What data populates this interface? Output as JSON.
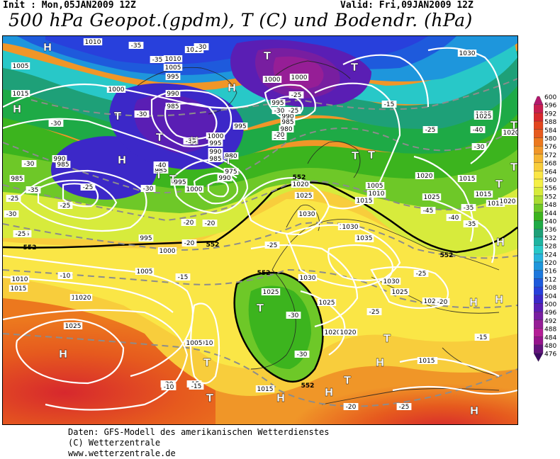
{
  "header": {
    "init_text": "Init : Mon,05JAN2009 12Z",
    "valid_text": "Valid: Fri,09JAN2009 12Z",
    "title": "500 hPa Geopot.(gpdm), T (C) und Bodendr. (hPa)"
  },
  "colorbar": {
    "labels": [
      "600",
      "596",
      "592",
      "588",
      "584",
      "580",
      "576",
      "572",
      "568",
      "564",
      "560",
      "556",
      "552",
      "548",
      "544",
      "540",
      "536",
      "532",
      "528",
      "524",
      "520",
      "516",
      "512",
      "508",
      "504",
      "500",
      "496",
      "492",
      "488",
      "484",
      "480",
      "476"
    ],
    "colors": [
      "#b4186e",
      "#c81e50",
      "#d7282d",
      "#e2461e",
      "#e65a1e",
      "#ec781e",
      "#f09628",
      "#f5b432",
      "#f8cd3c",
      "#fae646",
      "#f5f046",
      "#d7eb3c",
      "#aadc32",
      "#6ec828",
      "#3cb41e",
      "#1eaa46",
      "#1ea078",
      "#1eb4a0",
      "#28c8c8",
      "#28b4dc",
      "#1e96dc",
      "#1e78dc",
      "#1e5adc",
      "#2840dc",
      "#3c28c8",
      "#5a1eb4",
      "#781ea0",
      "#961e96",
      "#b41e96",
      "#96148c",
      "#64147d",
      "#3c0a64"
    ]
  },
  "map": {
    "isobar_labels": [
      {
        "t": "1010"
      },
      {
        "t": "1015"
      },
      {
        "t": "1010"
      },
      {
        "t": "1005"
      },
      {
        "t": "995"
      },
      {
        "t": "990"
      },
      {
        "t": "985"
      },
      {
        "t": "1000"
      },
      {
        "t": "1005"
      },
      {
        "t": "1015"
      },
      {
        "t": "1000"
      },
      {
        "t": "995"
      },
      {
        "t": "990"
      },
      {
        "t": "985"
      },
      {
        "t": "980"
      },
      {
        "t": "975"
      },
      {
        "t": "1000"
      },
      {
        "t": "995"
      },
      {
        "t": "990"
      },
      {
        "t": "985"
      },
      {
        "t": "980"
      },
      {
        "t": "975"
      },
      {
        "t": "985"
      },
      {
        "t": "990"
      },
      {
        "t": "995"
      },
      {
        "t": "1000"
      },
      {
        "t": "1005"
      },
      {
        "t": "1010"
      },
      {
        "t": "1015"
      },
      {
        "t": "1020"
      },
      {
        "t": "1025"
      },
      {
        "t": "1030"
      },
      {
        "t": "1035"
      },
      {
        "t": "1030"
      },
      {
        "t": "1025"
      },
      {
        "t": "1020"
      },
      {
        "t": "1015"
      },
      {
        "t": "1010"
      },
      {
        "t": "1005"
      },
      {
        "t": "1000"
      },
      {
        "t": "995"
      },
      {
        "t": "990"
      },
      {
        "t": "985"
      },
      {
        "t": "1030"
      },
      {
        "t": "1025"
      },
      {
        "t": "1020"
      },
      {
        "t": "1015"
      },
      {
        "t": "1020"
      },
      {
        "t": "1025"
      },
      {
        "t": "1030"
      },
      {
        "t": "1035"
      },
      {
        "t": "1030"
      },
      {
        "t": "1025"
      },
      {
        "t": "1020"
      },
      {
        "t": "1015"
      },
      {
        "t": "1010"
      },
      {
        "t": "1020"
      },
      {
        "t": "1025"
      },
      {
        "t": "1015"
      },
      {
        "t": "1020"
      },
      {
        "t": "1025"
      },
      {
        "t": "1015"
      },
      {
        "t": "1030"
      },
      {
        "t": "1025"
      },
      {
        "t": "1020"
      },
      {
        "t": "1015"
      },
      {
        "t": "1010"
      },
      {
        "t": "1005"
      },
      {
        "t": "1000"
      },
      {
        "t": "995"
      },
      {
        "t": "990"
      },
      {
        "t": "985"
      },
      {
        "t": "1020"
      },
      {
        "t": "1015"
      }
    ],
    "temp_labels": [
      {
        "t": "-35"
      },
      {
        "t": "-30"
      },
      {
        "t": "-35"
      },
      {
        "t": "-30"
      },
      {
        "t": "-25"
      },
      {
        "t": "-30"
      },
      {
        "t": "-25"
      },
      {
        "t": "-30"
      },
      {
        "t": "-40"
      },
      {
        "t": "-35"
      },
      {
        "t": "-30"
      },
      {
        "t": "-25"
      },
      {
        "t": "-25"
      },
      {
        "t": "-20"
      },
      {
        "t": "-15"
      },
      {
        "t": "-25"
      },
      {
        "t": "-45"
      },
      {
        "t": "-40"
      },
      {
        "t": "-35"
      },
      {
        "t": "-40"
      },
      {
        "t": "-35"
      },
      {
        "t": "-30"
      },
      {
        "t": "-25"
      },
      {
        "t": "-30"
      },
      {
        "t": "-25"
      },
      {
        "t": "-35"
      },
      {
        "t": "-30"
      },
      {
        "t": "-25"
      },
      {
        "t": "-20"
      },
      {
        "t": "-25"
      },
      {
        "t": "-20"
      },
      {
        "t": "-25"
      },
      {
        "t": "-30"
      },
      {
        "t": "-30"
      },
      {
        "t": "-25"
      },
      {
        "t": "-20"
      },
      {
        "t": "-20"
      },
      {
        "t": "-15"
      },
      {
        "t": "-10"
      },
      {
        "t": "-15"
      },
      {
        "t": "-20"
      },
      {
        "t": "-15"
      },
      {
        "t": "-10"
      },
      {
        "t": "-15"
      },
      {
        "t": "-20"
      },
      {
        "t": "-25"
      }
    ],
    "contour_labels": [
      {
        "t": "552"
      },
      {
        "t": "552"
      },
      {
        "t": "552"
      },
      {
        "t": "552"
      },
      {
        "t": "552"
      },
      {
        "t": "552"
      }
    ],
    "pressure_centers": [
      {
        "t": "H"
      },
      {
        "t": "H"
      },
      {
        "t": "T"
      },
      {
        "t": "T"
      },
      {
        "t": "H"
      },
      {
        "t": "H"
      },
      {
        "t": "T"
      },
      {
        "t": "H"
      },
      {
        "t": "T"
      },
      {
        "t": "T"
      },
      {
        "t": "T"
      },
      {
        "t": "T"
      },
      {
        "t": "T"
      },
      {
        "t": "T"
      },
      {
        "t": "T"
      },
      {
        "t": "H"
      },
      {
        "t": "H"
      },
      {
        "t": "T"
      },
      {
        "t": "H"
      },
      {
        "t": "T"
      },
      {
        "t": "T"
      },
      {
        "t": "T"
      },
      {
        "t": "H"
      },
      {
        "t": "T"
      },
      {
        "t": "H"
      },
      {
        "t": "H"
      },
      {
        "t": "H"
      },
      {
        "t": "T"
      },
      {
        "t": "T"
      },
      {
        "t": "H"
      }
    ]
  },
  "footer": {
    "line1": "Daten: GFS-Modell des amerikanischen Wetterdienstes",
    "line2": "(C) Wetterzentrale",
    "line3": "www.wetterzentrale.de"
  }
}
